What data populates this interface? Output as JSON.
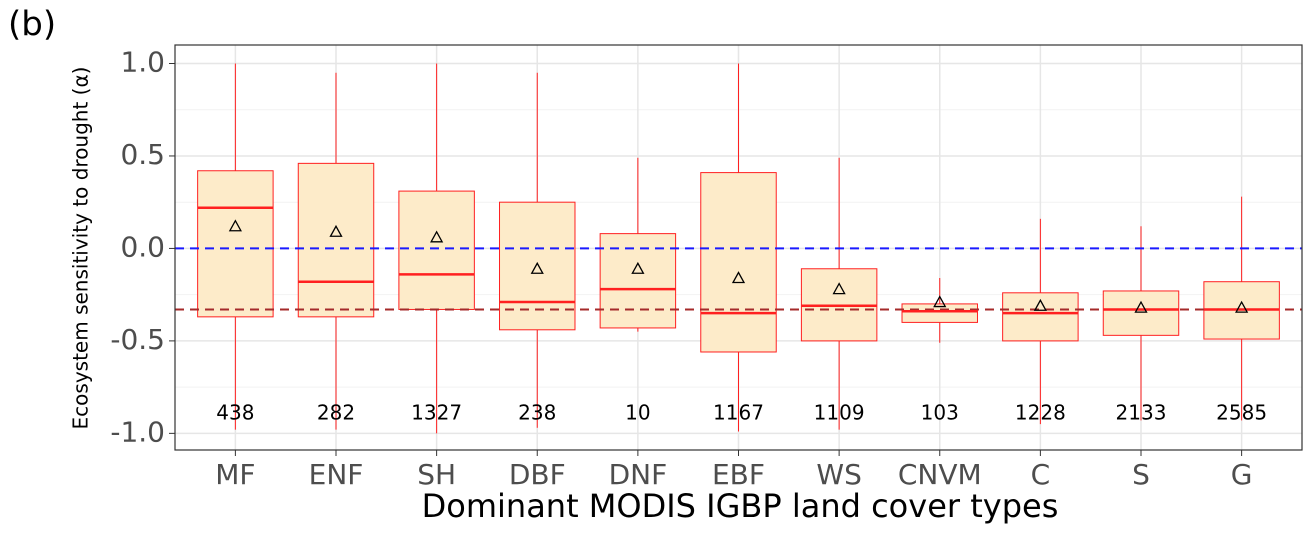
{
  "chart_data": {
    "type": "box",
    "panel_label": "(b)",
    "x_label": "Dominant MODIS IGBP land cover types",
    "y_label": "Ecosystem sensitivity to drought (α)",
    "categories": [
      "MF",
      "ENF",
      "SH",
      "DBF",
      "DNF",
      "EBF",
      "WS",
      "CNVM",
      "C",
      "S",
      "G"
    ],
    "whisker_low": [
      -0.98,
      -0.98,
      -1.0,
      -0.97,
      -0.45,
      -0.99,
      -0.98,
      -0.51,
      -0.95,
      -0.93,
      -0.93
    ],
    "q1": [
      -0.37,
      -0.37,
      -0.33,
      -0.44,
      -0.43,
      -0.56,
      -0.5,
      -0.4,
      -0.5,
      -0.47,
      -0.49
    ],
    "median": [
      0.22,
      -0.18,
      -0.14,
      -0.29,
      -0.22,
      -0.35,
      -0.31,
      -0.34,
      -0.35,
      -0.33,
      -0.33
    ],
    "q3": [
      0.42,
      0.46,
      0.31,
      0.25,
      0.08,
      0.41,
      -0.11,
      -0.3,
      -0.24,
      -0.23,
      -0.18
    ],
    "whisker_high": [
      1.0,
      0.95,
      1.0,
      0.95,
      0.49,
      1.0,
      0.49,
      -0.16,
      0.16,
      0.12,
      0.28
    ],
    "mean": [
      0.12,
      0.09,
      0.06,
      -0.11,
      -0.11,
      -0.16,
      -0.22,
      -0.29,
      -0.31,
      -0.32,
      -0.32
    ],
    "n": [
      438,
      282,
      1327,
      238,
      10,
      1167,
      1109,
      103,
      1228,
      2133,
      2585
    ],
    "box_color": "#ff2020",
    "box_fill": "#fdebc9",
    "hlines": [
      {
        "value": 0,
        "color": "#1a1aff"
      },
      {
        "value": -0.33,
        "color": "#a52a2a"
      }
    ],
    "ylim": [
      -1.09,
      1.1
    ],
    "yticks": [
      {
        "value": -1.0,
        "label": "-1.0"
      },
      {
        "value": -0.5,
        "label": "-0.5"
      },
      {
        "value": 0.0,
        "label": "0.0"
      },
      {
        "value": 0.5,
        "label": "0.5"
      },
      {
        "value": 1.0,
        "label": "1.0"
      }
    ],
    "minor_yticks": [
      -0.75,
      -0.25,
      0.25,
      0.75
    ],
    "grid": true
  }
}
